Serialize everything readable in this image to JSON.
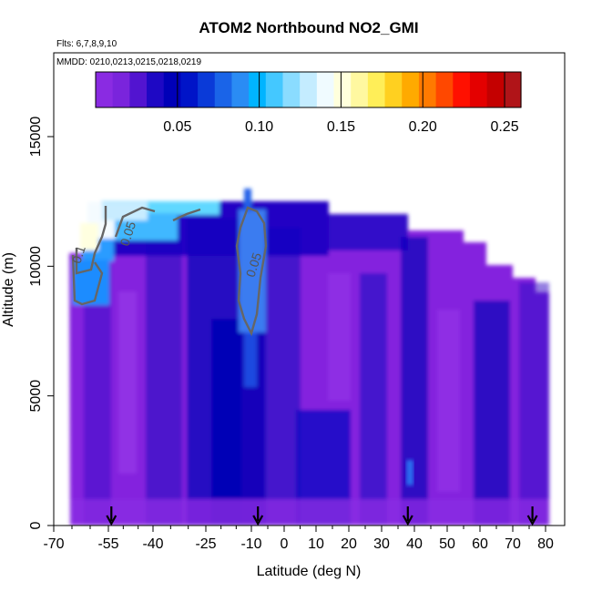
{
  "chart_data": {
    "type": "heatmap",
    "title": "ATOM2 Northbound NO2_GMI",
    "flights_note": "Flts: 6,7,8,9,10",
    "dates_note": "MMDD: 0210,0213,0215,0218,0219",
    "xlabel": "Latitude (deg N)",
    "ylabel": "Altitude (m)",
    "xlim": [
      -70,
      80
    ],
    "ylim": [
      0,
      17000
    ],
    "x_ticks_major": [
      -70,
      -55,
      -40,
      -25,
      -10,
      0,
      10,
      20,
      30,
      40,
      50,
      60,
      70,
      80
    ],
    "x_ticks_minor": [
      -65,
      -60,
      -50,
      -45,
      -35,
      -30,
      -20,
      -15,
      -5,
      5,
      15,
      25,
      35,
      45,
      55,
      65,
      75
    ],
    "x_tick_labels": [
      "-70",
      "-55",
      "-40",
      "-25",
      "-10",
      "0",
      "10",
      "20",
      "30",
      "40",
      "50",
      "60",
      "70",
      "80"
    ],
    "y_ticks": [
      0,
      5000,
      10000,
      15000
    ],
    "y_tick_labels": [
      "0",
      "5000",
      "10000",
      "15000"
    ],
    "colorbar": {
      "range": [
        0,
        0.26
      ],
      "ticks": [
        0.05,
        0.1,
        0.15,
        0.2,
        0.25
      ],
      "tick_labels": [
        "0.05",
        "0.10",
        "0.15",
        "0.20",
        "0.25"
      ],
      "palette": [
        "#8a2be2",
        "#7a24dc",
        "#5214d0",
        "#1e08c4",
        "#0000b8",
        "#0014c8",
        "#0a3ad8",
        "#1a64e8",
        "#2a8cf4",
        "#00b4ff",
        "#44c8ff",
        "#8adcff",
        "#c4ecff",
        "#f0fbff",
        "#ffffdc",
        "#fff8a0",
        "#ffee58",
        "#ffd020",
        "#ffaa00",
        "#ff7a00",
        "#ff4800",
        "#ff1000",
        "#e40000",
        "#c40000",
        "#b01418"
      ]
    },
    "contours": [
      {
        "label": "0.1",
        "at_lat": -62,
        "at_alt": 10400
      },
      {
        "label": "0.05",
        "at_lat": -47,
        "at_alt": 11200
      },
      {
        "label": "0.05",
        "at_lat": -8,
        "at_alt": 10000
      }
    ],
    "flight_markers_lat": [
      -54,
      -8,
      38,
      76
    ],
    "grid": false,
    "legend": "colorbar top"
  }
}
